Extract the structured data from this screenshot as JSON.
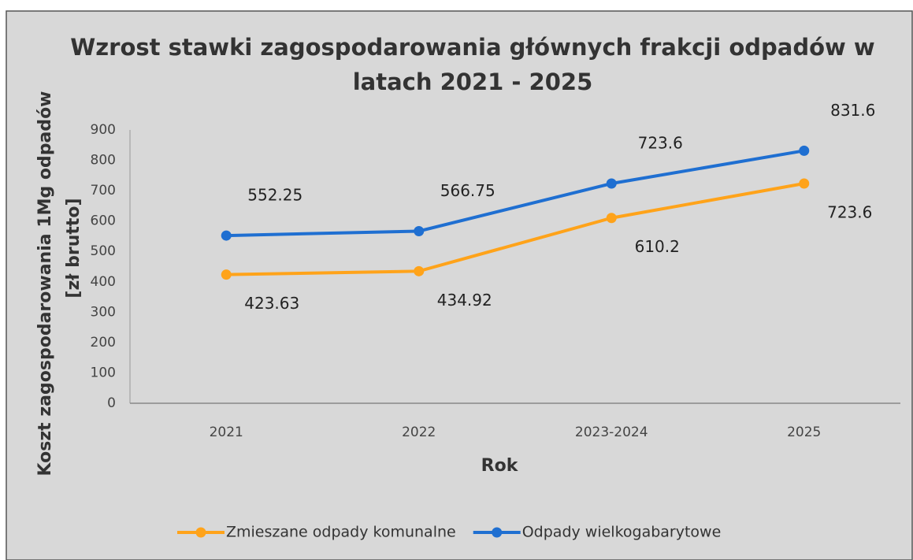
{
  "chart_data": {
    "type": "line",
    "title": "Wzrost stawki zagospodarowania głównych frakcji odpadów w latach 2021 - 2025",
    "y_label": [
      "Koszt zagospodarowania 1Mg odpadów",
      "[zł brutto]"
    ],
    "x_label": "Rok",
    "categories": [
      "2021",
      "2022",
      "2023-2024",
      "2025"
    ],
    "series": [
      {
        "name": "Zmieszane odpady komunalne",
        "color": "#ffa31a",
        "values": [
          423.63,
          434.92,
          610.2,
          723.6
        ]
      },
      {
        "name": "Odpady wielkogabarytowe",
        "color": "#1f6fd1",
        "values": [
          552.25,
          566.75,
          723.6,
          831.6
        ]
      }
    ],
    "ylim": [
      0,
      900
    ],
    "yticks": [
      0,
      100,
      200,
      300,
      400,
      500,
      600,
      700,
      800,
      900
    ],
    "grid": false,
    "legend": "bottom"
  }
}
